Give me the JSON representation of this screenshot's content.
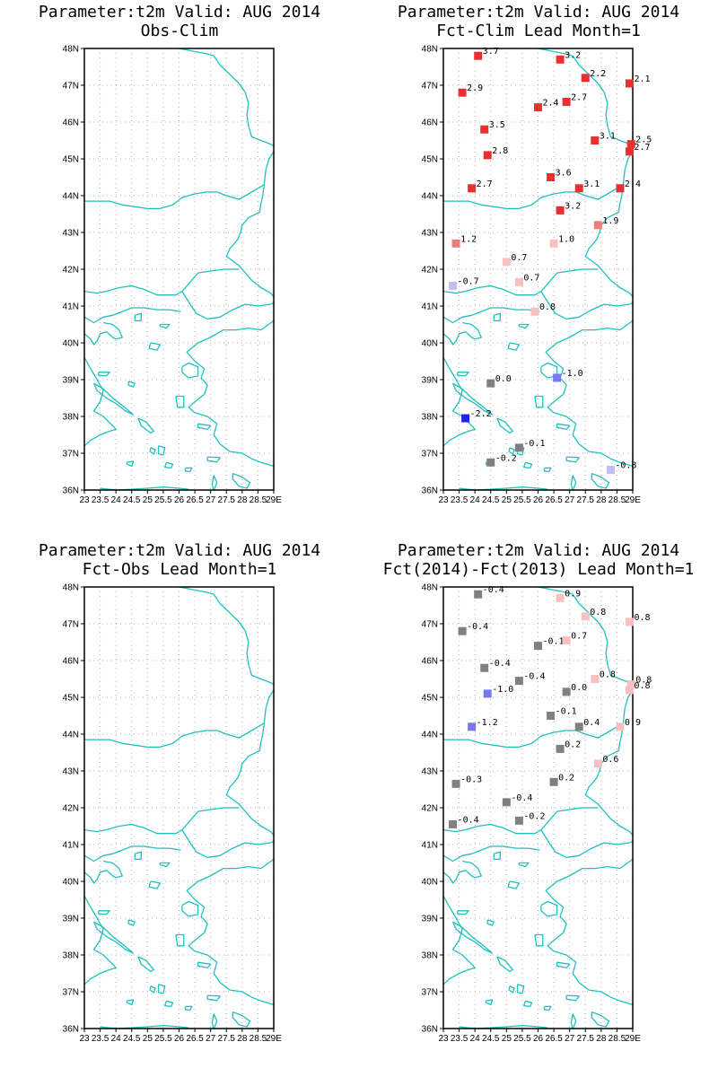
{
  "panels": [
    {
      "title_line1": "Parameter:t2m Valid: AUG 2014",
      "title_line2": "Obs-Clim",
      "stations": []
    },
    {
      "title_line1": "Parameter:t2m Valid: AUG 2014",
      "title_line2": "Fct-Clim Lead Month=1",
      "stations": [
        {
          "lon": 24.1,
          "lat": 47.8,
          "value": "3.7"
        },
        {
          "lon": 26.7,
          "lat": 47.7,
          "value": "3.2"
        },
        {
          "lon": 27.5,
          "lat": 47.2,
          "value": "2.2"
        },
        {
          "lon": 28.9,
          "lat": 47.05,
          "value": "2.1"
        },
        {
          "lon": 23.6,
          "lat": 46.8,
          "value": "2.9"
        },
        {
          "lon": 26.0,
          "lat": 46.4,
          "value": "2.4"
        },
        {
          "lon": 26.9,
          "lat": 46.55,
          "value": "2.7"
        },
        {
          "lon": 24.3,
          "lat": 45.8,
          "value": "3.5"
        },
        {
          "lon": 27.8,
          "lat": 45.5,
          "value": "3.1"
        },
        {
          "lon": 28.95,
          "lat": 45.4,
          "value": "2.5"
        },
        {
          "lon": 28.9,
          "lat": 45.2,
          "value": "2.7"
        },
        {
          "lon": 24.4,
          "lat": 45.1,
          "value": "2.8"
        },
        {
          "lon": 26.4,
          "lat": 44.5,
          "value": "3.6"
        },
        {
          "lon": 27.3,
          "lat": 44.2,
          "value": "3.1"
        },
        {
          "lon": 28.6,
          "lat": 44.2,
          "value": "2.4"
        },
        {
          "lon": 23.9,
          "lat": 44.2,
          "value": "2.7"
        },
        {
          "lon": 26.7,
          "lat": 43.6,
          "value": "3.2"
        },
        {
          "lon": 27.9,
          "lat": 43.2,
          "value": "1.9"
        },
        {
          "lon": 23.4,
          "lat": 42.7,
          "value": "1.2"
        },
        {
          "lon": 26.5,
          "lat": 42.7,
          "value": "1.0"
        },
        {
          "lon": 25.0,
          "lat": 42.2,
          "value": "0.7"
        },
        {
          "lon": 25.4,
          "lat": 41.65,
          "value": "0.7"
        },
        {
          "lon": 23.3,
          "lat": 41.55,
          "value": "-0.7"
        },
        {
          "lon": 25.9,
          "lat": 40.85,
          "value": "0.8"
        },
        {
          "lon": 24.5,
          "lat": 38.9,
          "value": "0.0"
        },
        {
          "lon": 26.6,
          "lat": 39.05,
          "value": "-1.0"
        },
        {
          "lon": 23.7,
          "lat": 37.95,
          "value": "-2.2"
        },
        {
          "lon": 25.4,
          "lat": 37.15,
          "value": "-0.1"
        },
        {
          "lon": 24.5,
          "lat": 36.75,
          "value": "-0.2"
        },
        {
          "lon": 28.3,
          "lat": 36.55,
          "value": "-0.8"
        }
      ]
    },
    {
      "title_line1": "Parameter:t2m Valid: AUG 2014",
      "title_line2": "Fct-Obs Lead Month=1",
      "stations": []
    },
    {
      "title_line1": "Parameter:t2m Valid: AUG 2014",
      "title_line2": "Fct(2014)-Fct(2013) Lead Month=1",
      "stations": [
        {
          "lon": 24.1,
          "lat": 47.8,
          "value": "-0.4"
        },
        {
          "lon": 26.7,
          "lat": 47.7,
          "value": "0.9"
        },
        {
          "lon": 27.5,
          "lat": 47.2,
          "value": "0.8"
        },
        {
          "lon": 28.9,
          "lat": 47.05,
          "value": "0.8"
        },
        {
          "lon": 23.6,
          "lat": 46.8,
          "value": "-0.4"
        },
        {
          "lon": 26.0,
          "lat": 46.4,
          "value": "-0.1"
        },
        {
          "lon": 26.9,
          "lat": 46.55,
          "value": "0.7"
        },
        {
          "lon": 24.3,
          "lat": 45.8,
          "value": "-0.4"
        },
        {
          "lon": 25.4,
          "lat": 45.45,
          "value": "-0.4"
        },
        {
          "lon": 27.8,
          "lat": 45.5,
          "value": "0.8"
        },
        {
          "lon": 28.95,
          "lat": 45.35,
          "value": "0.8"
        },
        {
          "lon": 28.9,
          "lat": 45.2,
          "value": "0.8"
        },
        {
          "lon": 24.4,
          "lat": 45.1,
          "value": "-1.0"
        },
        {
          "lon": 26.9,
          "lat": 45.15,
          "value": "0.0"
        },
        {
          "lon": 26.4,
          "lat": 44.5,
          "value": "-0.1"
        },
        {
          "lon": 27.3,
          "lat": 44.2,
          "value": "0.4"
        },
        {
          "lon": 28.6,
          "lat": 44.2,
          "value": "0.9"
        },
        {
          "lon": 23.9,
          "lat": 44.2,
          "value": "-1.2"
        },
        {
          "lon": 26.7,
          "lat": 43.6,
          "value": "0.2"
        },
        {
          "lon": 27.9,
          "lat": 43.2,
          "value": "0.6"
        },
        {
          "lon": 23.4,
          "lat": 42.65,
          "value": "-0.3"
        },
        {
          "lon": 26.5,
          "lat": 42.7,
          "value": "0.2"
        },
        {
          "lon": 25.0,
          "lat": 42.15,
          "value": "-0.4"
        },
        {
          "lon": 25.4,
          "lat": 41.65,
          "value": "-0.2"
        },
        {
          "lon": 23.3,
          "lat": 41.55,
          "value": "-0.4"
        }
      ]
    }
  ],
  "axes": {
    "lat_labels": [
      "48N",
      "47N",
      "46N",
      "45N",
      "44N",
      "43N",
      "42N",
      "41N",
      "40N",
      "39N",
      "38N",
      "37N",
      "36N"
    ],
    "lon_labels": [
      "23",
      "23.5",
      "24",
      "24.5",
      "25",
      "25.5",
      "26",
      "26.5",
      "27",
      "27.5",
      "28",
      "28.5",
      "29E"
    ],
    "lon_range": [
      23,
      29
    ],
    "lat_range": [
      36,
      48
    ]
  },
  "colors": {
    "coastline": "#20c0c0",
    "frame": "#000000",
    "grid": "#b4b4b4",
    "strong_positive": "#e83030",
    "mid_positive": "#f07c7c",
    "weak_positive": "#f8c0c0",
    "neutral": "#808080",
    "weak_negative": "#c0c0f0",
    "mid_negative": "#7878f0",
    "strong_negative": "#2020f0"
  }
}
